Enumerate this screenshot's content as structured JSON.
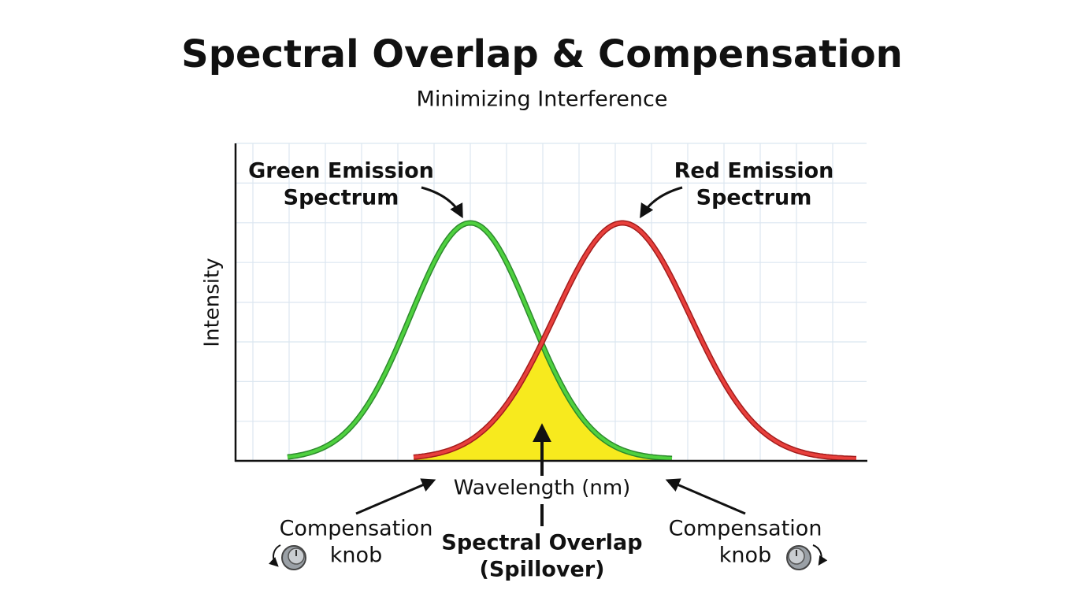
{
  "header": {
    "title": "Spectral Overlap & Compensation",
    "subtitle": "Minimizing Interference"
  },
  "axes": {
    "y_label": "Intensity",
    "x_label": "Wavelength (nm)"
  },
  "annotations": {
    "green_label": [
      "Green Emission",
      "Spectrum"
    ],
    "red_label": [
      "Red Emission",
      "Spectrum"
    ],
    "overlap_label": [
      "Spectral Overlap",
      "(Spillover)"
    ],
    "left_knob": [
      "Compensation",
      "knob"
    ],
    "right_knob": [
      "Compensation",
      "knob"
    ]
  }
}
